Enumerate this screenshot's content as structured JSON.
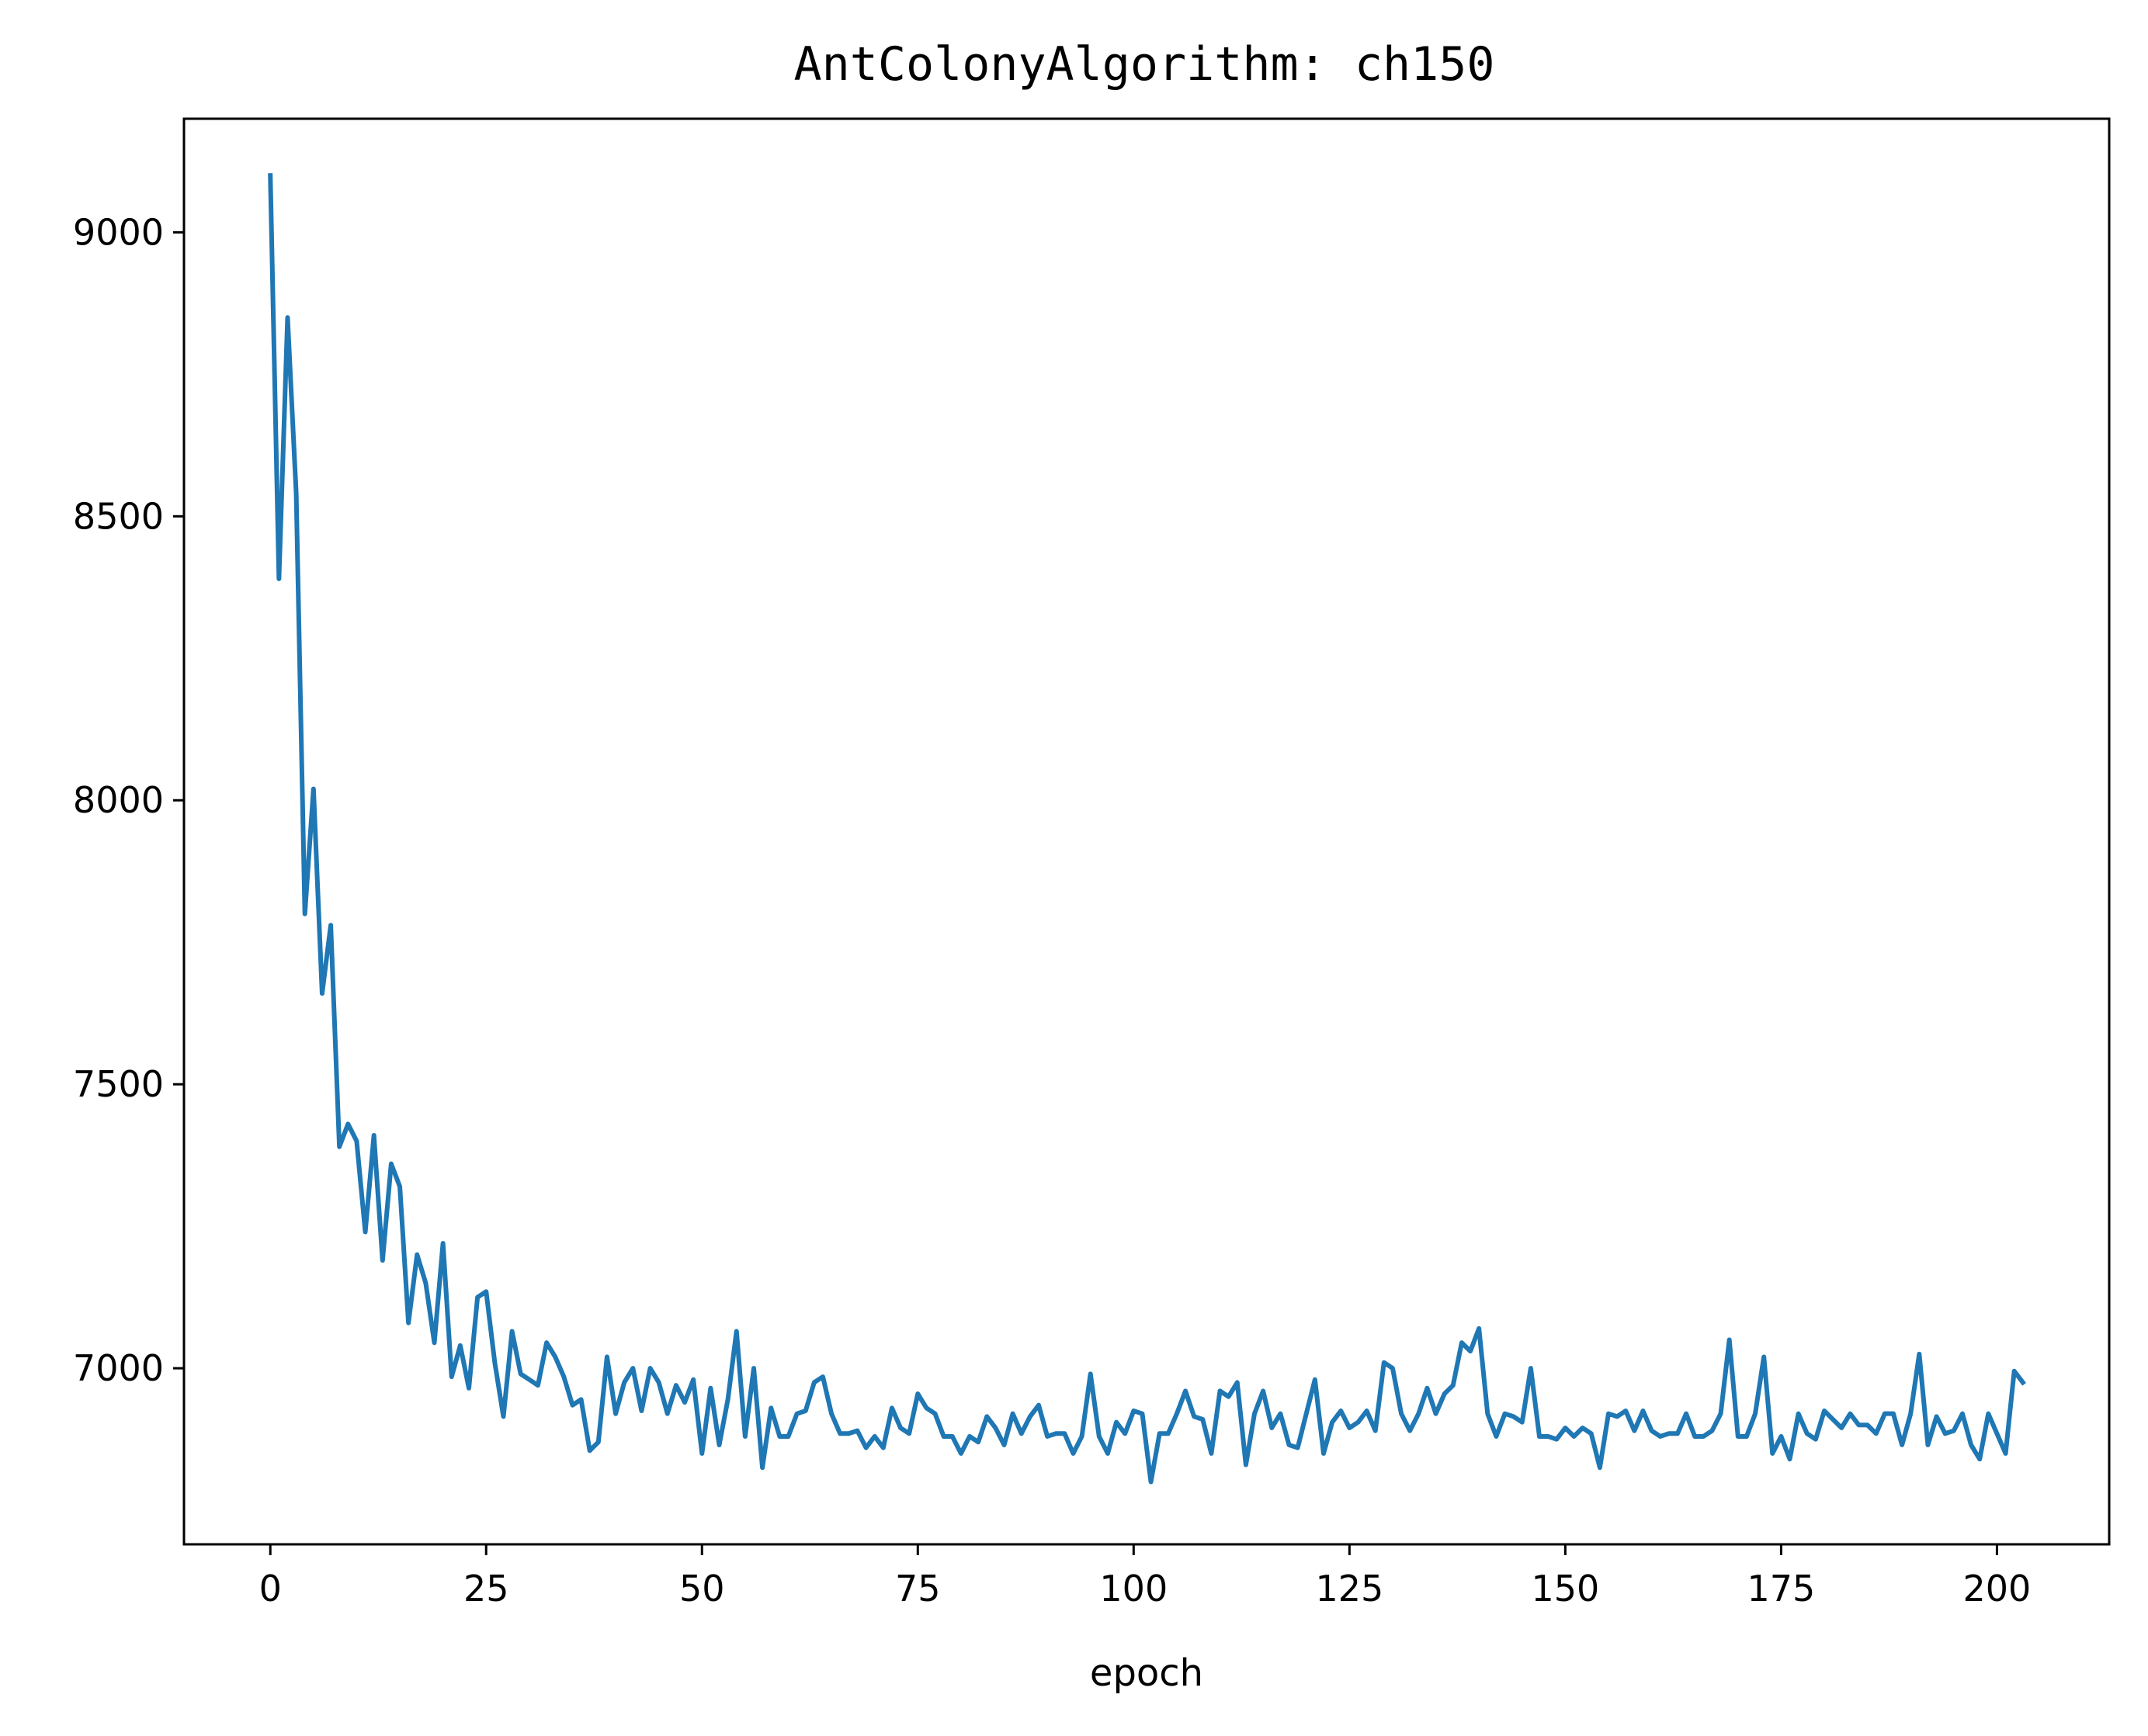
{
  "chart_data": {
    "type": "line",
    "title": "AntColonyAlgorithm: ch150",
    "xlabel": "epoch",
    "ylabel": "",
    "xlim": [
      -10,
      213
    ],
    "ylim": [
      6690,
      9200
    ],
    "xticks": [
      0,
      25,
      50,
      75,
      100,
      125,
      150,
      175,
      200
    ],
    "xtick_labels": [
      "0",
      "25",
      "50",
      "75",
      "100",
      "125",
      "150",
      "175",
      "200"
    ],
    "yticks": [
      7000,
      7500,
      8000,
      8500,
      9000
    ],
    "ytick_labels": [
      "7000",
      "7500",
      "8000",
      "8500",
      "9000"
    ],
    "grid": false,
    "colors": {
      "series": "#1f77b4"
    },
    "series": [
      {
        "values": [
          9100,
          8390,
          8850,
          8540,
          7800,
          8020,
          7660,
          7780,
          7390,
          7430,
          7400,
          7240,
          7410,
          7190,
          7360,
          7320,
          7080,
          7200,
          7150,
          7045,
          7220,
          6985,
          7040,
          6965,
          7125,
          7135,
          7010,
          6915,
          7065,
          6990,
          6980,
          6970,
          7045,
          7020,
          6985,
          6935,
          6945,
          6855,
          6870,
          7020,
          6920,
          6975,
          7000,
          6925,
          7000,
          6975,
          6920,
          6970,
          6940,
          6980,
          6850,
          6965,
          6865,
          6945,
          7065,
          6880,
          7000,
          6825,
          6930,
          6880,
          6880,
          6920,
          6925,
          6975,
          6985,
          6920,
          6885,
          6885,
          6890,
          6860,
          6880,
          6860,
          6930,
          6895,
          6885,
          6955,
          6930,
          6920,
          6880,
          6880,
          6850,
          6880,
          6870,
          6915,
          6895,
          6865,
          6920,
          6885,
          6915,
          6935,
          6880,
          6885,
          6885,
          6850,
          6880,
          6990,
          6880,
          6850,
          6905,
          6885,
          6925,
          6920,
          6800,
          6885,
          6885,
          6920,
          6960,
          6915,
          6910,
          6850,
          6960,
          6950,
          6975,
          6830,
          6920,
          6960,
          6895,
          6920,
          6865,
          6860,
          6920,
          6980,
          6850,
          6905,
          6925,
          6895,
          6905,
          6925,
          6890,
          7010,
          7000,
          6920,
          6890,
          6920,
          6965,
          6920,
          6955,
          6970,
          7045,
          7030,
          7070,
          6920,
          6880,
          6920,
          6915,
          6905,
          7000,
          6880,
          6880,
          6875,
          6895,
          6880,
          6895,
          6885,
          6825,
          6920,
          6915,
          6925,
          6890,
          6925,
          6890,
          6880,
          6885,
          6885,
          6920,
          6880,
          6880,
          6890,
          6920,
          7050,
          6880,
          6880,
          6920,
          7020,
          6850,
          6880,
          6840,
          6920,
          6885,
          6875,
          6925,
          6910,
          6895,
          6920,
          6900,
          6900,
          6885,
          6920,
          6920,
          6865,
          6920,
          7025,
          6865,
          6915,
          6885,
          6890,
          6920,
          6865,
          6840,
          6920,
          6885,
          6850,
          6995,
          6975
        ]
      }
    ]
  }
}
